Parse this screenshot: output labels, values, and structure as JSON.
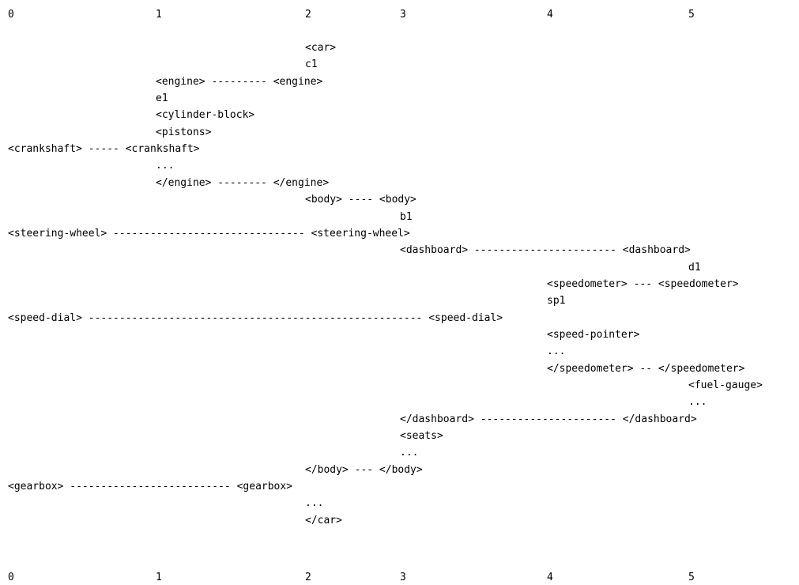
{
  "columns_top": [
    "0",
    "1",
    "2",
    "3",
    "4",
    "5"
  ],
  "columns_bottom": [
    "0",
    "1",
    "2",
    "3",
    "4",
    "5"
  ],
  "lines": [
    {
      "col": 2,
      "text": "<car>"
    },
    {
      "col": 2,
      "text": "c1"
    },
    {
      "col": 1,
      "text": "<engine> --------- <engine>"
    },
    {
      "col": 1,
      "text": "e1"
    },
    {
      "col": 1,
      "text": "<cylinder-block>"
    },
    {
      "col": 1,
      "text": "<pistons>"
    },
    {
      "col": 0,
      "text": "<crankshaft> ----- <crankshaft>"
    },
    {
      "col": 1,
      "text": "..."
    },
    {
      "col": 1,
      "text": "</engine> -------- </engine>"
    },
    {
      "col": 2,
      "text": "<body> ---- <body>"
    },
    {
      "col": 3,
      "text": "b1"
    },
    {
      "col": 0,
      "text": "<steering-wheel> ------------------------------- <steering-wheel>"
    },
    {
      "col": 3,
      "text": "<dashboard> ----------------------- <dashboard>"
    },
    {
      "col": 5,
      "text": "d1"
    },
    {
      "col": 4,
      "text": "<speedometer> --- <speedometer>"
    },
    {
      "col": 4,
      "text": "sp1"
    },
    {
      "col": 0,
      "text": "<speed-dial> ------------------------------------------------------ <speed-dial>"
    },
    {
      "col": 4,
      "text": "<speed-pointer>"
    },
    {
      "col": 4,
      "text": "..."
    },
    {
      "col": 4,
      "text": "</speedometer> -- </speedometer>"
    },
    {
      "col": 5,
      "text": "<fuel-gauge>"
    },
    {
      "col": 5,
      "text": "..."
    },
    {
      "col": 3,
      "text": "</dashboard> ---------------------- </dashboard>"
    },
    {
      "col": 3,
      "text": "<seats>"
    },
    {
      "col": 3,
      "text": "..."
    },
    {
      "col": 2,
      "text": "</body> --- </body>"
    },
    {
      "col": 0,
      "text": "<gearbox> -------------------------- <gearbox>"
    },
    {
      "col": 2,
      "text": "..."
    },
    {
      "col": 2,
      "text": "</car>"
    }
  ]
}
